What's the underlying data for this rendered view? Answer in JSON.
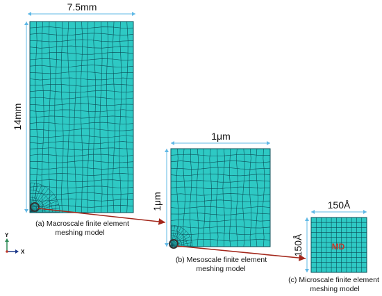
{
  "colors": {
    "mesh_fill": "#2ec9c4",
    "mesh_line": "#0c4d57",
    "dimension_line": "#5fb8e6",
    "connector_arrow": "#a3271b",
    "marker_ring": "#333333",
    "md_label": "#c0392b",
    "axis_y": "#2e8b57",
    "axis_x": "#1f3a8a"
  },
  "panels": {
    "macro": {
      "width_label": "7.5mm",
      "height_label": "14mm",
      "caption_lines": [
        "(a) Macroscale finite element",
        "meshing model"
      ]
    },
    "meso": {
      "width_label": "1μm",
      "height_label": "1μm",
      "caption_lines": [
        "(b) Mesoscale finite element",
        "meshing model"
      ]
    },
    "micro": {
      "width_label": "150Å",
      "height_label": "150Å",
      "center_label": "MD",
      "caption_lines": [
        "(c) Microscale finite element",
        "meshing model"
      ]
    }
  },
  "axes": {
    "y_label": "Y",
    "x_label": "X"
  },
  "icons": {
    "marker": "circle-marker-icon",
    "arrow": "connector-arrow-icon",
    "axes": "coordinate-axes-icon"
  }
}
